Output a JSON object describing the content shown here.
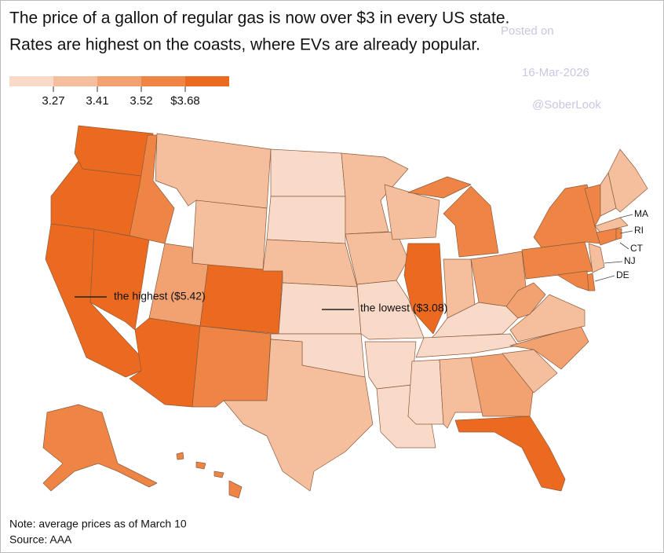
{
  "title": [
    "The price of a gallon of regular gas is now over $3 in every US state.",
    "Rates are highest on the coasts, where EVs are already popular."
  ],
  "legend": {
    "colors": [
      "#f9dac8",
      "#f5bf9d",
      "#f2a170",
      "#ef8545",
      "#ec6a1f"
    ],
    "ticks": [
      3.27,
      3.41,
      3.52,
      {
        "value": 3.68,
        "label": "$3.68"
      }
    ]
  },
  "map": {
    "state_classes": [
      4,
      4,
      4,
      4,
      3,
      1,
      1,
      2,
      4,
      4,
      3,
      0,
      0,
      1,
      0,
      0,
      1,
      1,
      1,
      0,
      0,
      0,
      1,
      4,
      3,
      3,
      1,
      2,
      0,
      0,
      0,
      1,
      2,
      4,
      1,
      2,
      1,
      2,
      3,
      3,
      3,
      1,
      1,
      1,
      3,
      3,
      3,
      1,
      3,
      3,
      3,
      3,
      3,
      3
    ]
  },
  "annotations": [
    "the highest ($5.42)",
    "the lowest ($3.08)"
  ],
  "state_labels": [
    "MA",
    "RI",
    "CT",
    "NJ",
    "DE"
  ],
  "watermark": [
    "Posted on",
    "16-Mar-2026",
    "@SoberLook"
  ],
  "note": "Note: average prices as of March 10",
  "source": "Source: AAA"
}
